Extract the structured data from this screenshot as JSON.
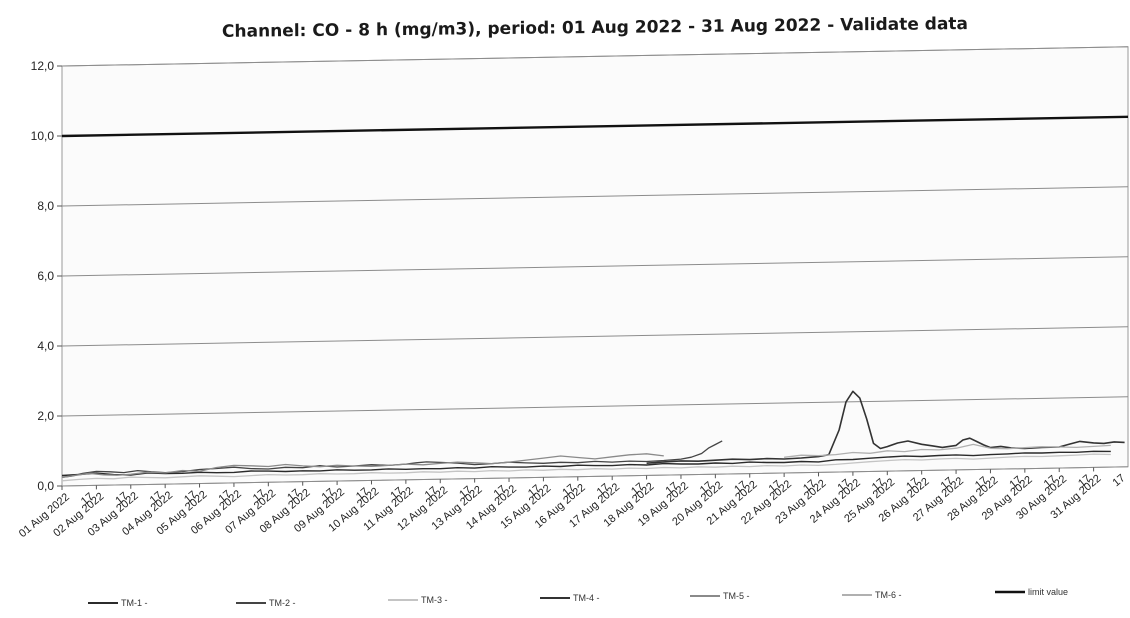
{
  "chart_data": {
    "type": "line",
    "title": "Channel: CO - 8 h (mg/m3), period: 01 Aug 2022 - 31 Aug 2022 - Validate data",
    "xlabel": "",
    "ylabel": "",
    "ylim": [
      0,
      12
    ],
    "y_ticks": [
      "0,0",
      "2,0",
      "4,0",
      "6,0",
      "8,0",
      "10,0",
      "12,0"
    ],
    "y_tick_values": [
      0,
      2,
      4,
      6,
      8,
      10,
      12
    ],
    "grid": true,
    "legend_position": "bottom",
    "categories": [
      "01 Aug 2022",
      "02 Aug 2022",
      "03 Aug 2022",
      "04 Aug 2022",
      "05 Aug 2022",
      "06 Aug 2022",
      "07 Aug 2022",
      "08 Aug 2022",
      "09 Aug 2022",
      "10 Aug 2022",
      "11 Aug 2022",
      "12 Aug 2022",
      "13 Aug 2022",
      "14 Aug 2022",
      "15 Aug 2022",
      "16 Aug 2022",
      "17 Aug 2022",
      "18 Aug 2022",
      "19 Aug 2022",
      "20 Aug 2022",
      "21 Aug 2022",
      "22 Aug 2022",
      "23 Aug 2022",
      "24 Aug 2022",
      "25 Aug 2022",
      "26 Aug 2022",
      "27 Aug 2022",
      "28 Aug 2022",
      "29 Aug 2022",
      "30 Aug 2022",
      "31 Aug 2022"
    ],
    "sub_tick_label": "17",
    "series": [
      {
        "name": "TM-1 -",
        "color": "#2b2b2b",
        "width": 1.4,
        "x": [
          0,
          0.5,
          1,
          1.5,
          2,
          2.5,
          3,
          3.5,
          4,
          4.5,
          5,
          5.5,
          6,
          6.5,
          7,
          7.5,
          8,
          8.5,
          9,
          9.5,
          10,
          10.5,
          11,
          11.5,
          12,
          12.5,
          13,
          13.5,
          14,
          14.5,
          15,
          15.5,
          16,
          16.5,
          17,
          17.5,
          18,
          18.5,
          19,
          19.5,
          20,
          20.5,
          21,
          21.5,
          22,
          22.5,
          23,
          23.5,
          24,
          24.5,
          25,
          25.5,
          26,
          26.5,
          27,
          27.5,
          28,
          28.5,
          29,
          29.5,
          30,
          30.5
        ],
        "y": [
          0.3,
          0.32,
          0.35,
          0.3,
          0.28,
          0.33,
          0.3,
          0.3,
          0.32,
          0.3,
          0.3,
          0.33,
          0.32,
          0.3,
          0.31,
          0.3,
          0.32,
          0.3,
          0.3,
          0.32,
          0.3,
          0.31,
          0.3,
          0.32,
          0.3,
          0.33,
          0.31,
          0.3,
          0.32,
          0.3,
          0.33,
          0.31,
          0.3,
          0.32,
          0.3,
          0.33,
          0.31,
          0.3,
          0.32,
          0.3,
          0.33,
          0.31,
          0.3,
          0.32,
          0.3,
          0.35,
          0.35,
          0.38,
          0.4,
          0.42,
          0.4,
          0.42,
          0.43,
          0.4,
          0.42,
          0.43,
          0.45,
          0.44,
          0.45,
          0.44,
          0.46,
          0.45
        ]
      },
      {
        "name": "TM-2 -",
        "color": "#444444",
        "width": 1.3,
        "x": [
          0,
          0.3,
          0.6,
          1,
          1.4,
          1.8,
          2.2,
          2.6,
          3,
          3.5,
          4,
          4.5,
          5,
          5.5,
          6,
          6.5,
          7,
          7.5,
          8,
          8.5,
          9,
          9.5,
          10,
          10.3,
          10.6,
          11,
          11.5,
          12,
          12.5,
          13,
          13.5,
          14,
          14.5,
          15,
          15.5,
          16,
          16.5,
          17,
          17.5,
          18,
          18.3,
          18.6,
          18.8,
          19.0,
          19.2
        ],
        "y": [
          0.25,
          0.28,
          0.35,
          0.4,
          0.38,
          0.35,
          0.4,
          0.36,
          0.33,
          0.35,
          0.4,
          0.42,
          0.45,
          0.4,
          0.38,
          0.42,
          0.4,
          0.45,
          0.4,
          0.42,
          0.45,
          0.42,
          0.45,
          0.48,
          0.5,
          0.48,
          0.45,
          0.4,
          0.42,
          0.45,
          0.42,
          0.4,
          0.42,
          0.4,
          0.43,
          0.4,
          0.42,
          0.4,
          0.42,
          0.45,
          0.5,
          0.6,
          0.75,
          0.85,
          0.95
        ]
      },
      {
        "name": "TM-3 -",
        "color": "#c4c4c4",
        "width": 1.3,
        "x": [
          0,
          0.5,
          1,
          1.5,
          2,
          2.5,
          3,
          3.5,
          4,
          4.5,
          5,
          5.5,
          6,
          6.5,
          7,
          7.5,
          8,
          8.5,
          9,
          9.5,
          10,
          10.5,
          11,
          11.5,
          12,
          12.5,
          13,
          13.5,
          14,
          14.5,
          15,
          15.5,
          16,
          16.5,
          17,
          17.5,
          18,
          18.5,
          19,
          19.5,
          20,
          20.5,
          21,
          21.5,
          22,
          22.5,
          23,
          23.5,
          24,
          24.5,
          25,
          25.5,
          26,
          26.5,
          27,
          27.5,
          28,
          28.5,
          29,
          29.5,
          30,
          30.5
        ],
        "y": [
          0.15,
          0.18,
          0.2,
          0.18,
          0.22,
          0.2,
          0.18,
          0.2,
          0.22,
          0.2,
          0.18,
          0.2,
          0.22,
          0.2,
          0.2,
          0.22,
          0.2,
          0.2,
          0.22,
          0.2,
          0.2,
          0.22,
          0.2,
          0.22,
          0.2,
          0.22,
          0.2,
          0.22,
          0.2,
          0.22,
          0.2,
          0.22,
          0.2,
          0.22,
          0.2,
          0.22,
          0.2,
          0.22,
          0.2,
          0.22,
          0.2,
          0.22,
          0.2,
          0.22,
          0.2,
          0.22,
          0.25,
          0.28,
          0.3,
          0.32,
          0.3,
          0.32,
          0.33,
          0.3,
          0.32,
          0.34,
          0.35,
          0.34,
          0.35,
          0.36,
          0.38,
          0.36
        ]
      },
      {
        "name": "TM-4 -",
        "color": "#333333",
        "width": 1.6,
        "x": [
          17,
          17.5,
          18,
          18.5,
          19,
          19.5,
          20,
          20.5,
          21,
          21.5,
          22,
          22.3,
          22.6,
          22.8,
          23.0,
          23.2,
          23.4,
          23.6,
          23.8,
          24,
          24.3,
          24.6,
          25,
          25.3,
          25.6,
          26,
          26.2,
          26.4,
          26.6,
          26.8,
          27,
          27.3,
          27.6,
          28,
          28.5,
          29,
          29.3,
          29.6,
          30,
          30.3,
          30.6,
          30.9
        ],
        "y": [
          0.35,
          0.38,
          0.4,
          0.38,
          0.4,
          0.42,
          0.4,
          0.42,
          0.4,
          0.42,
          0.45,
          0.5,
          1.2,
          2.0,
          2.3,
          2.1,
          1.5,
          0.8,
          0.65,
          0.7,
          0.8,
          0.85,
          0.75,
          0.7,
          0.65,
          0.7,
          0.85,
          0.9,
          0.8,
          0.7,
          0.62,
          0.65,
          0.6,
          0.58,
          0.6,
          0.6,
          0.68,
          0.75,
          0.7,
          0.68,
          0.72,
          0.7
        ]
      },
      {
        "name": "TM-5 -",
        "color": "#8a8a8a",
        "width": 1.3,
        "x": [
          0,
          0.4,
          0.8,
          1.2,
          1.6,
          2,
          2.5,
          3,
          3.5,
          4,
          4.5,
          5,
          5.5,
          6,
          6.5,
          7,
          7.5,
          8,
          8.5,
          9,
          9.5,
          10,
          10.5,
          11,
          11.5,
          12,
          12.5,
          13,
          13.5,
          14,
          14.5,
          15,
          15.5,
          16,
          16.5,
          17,
          17.5
        ],
        "y": [
          0.25,
          0.3,
          0.35,
          0.3,
          0.28,
          0.3,
          0.35,
          0.32,
          0.38,
          0.35,
          0.45,
          0.5,
          0.48,
          0.45,
          0.5,
          0.45,
          0.42,
          0.45,
          0.42,
          0.4,
          0.42,
          0.45,
          0.42,
          0.45,
          0.48,
          0.45,
          0.42,
          0.45,
          0.5,
          0.55,
          0.6,
          0.55,
          0.5,
          0.55,
          0.6,
          0.62,
          0.55
        ]
      },
      {
        "name": "TM-6 -",
        "color": "#b0b0b0",
        "width": 1.3,
        "x": [
          21,
          21.5,
          22,
          22.5,
          23,
          23.5,
          24,
          24.5,
          25,
          25.5,
          26,
          26.5,
          27,
          27.5,
          28,
          28.5,
          29,
          29.5,
          30,
          30.5
        ],
        "y": [
          0.45,
          0.5,
          0.48,
          0.5,
          0.55,
          0.52,
          0.58,
          0.55,
          0.6,
          0.58,
          0.62,
          0.72,
          0.6,
          0.58,
          0.6,
          0.62,
          0.6,
          0.58,
          0.6,
          0.62
        ]
      },
      {
        "name": "limit value",
        "color": "#111111",
        "width": 2.4,
        "x": [
          0,
          31
        ],
        "y": [
          10,
          10
        ]
      }
    ]
  }
}
